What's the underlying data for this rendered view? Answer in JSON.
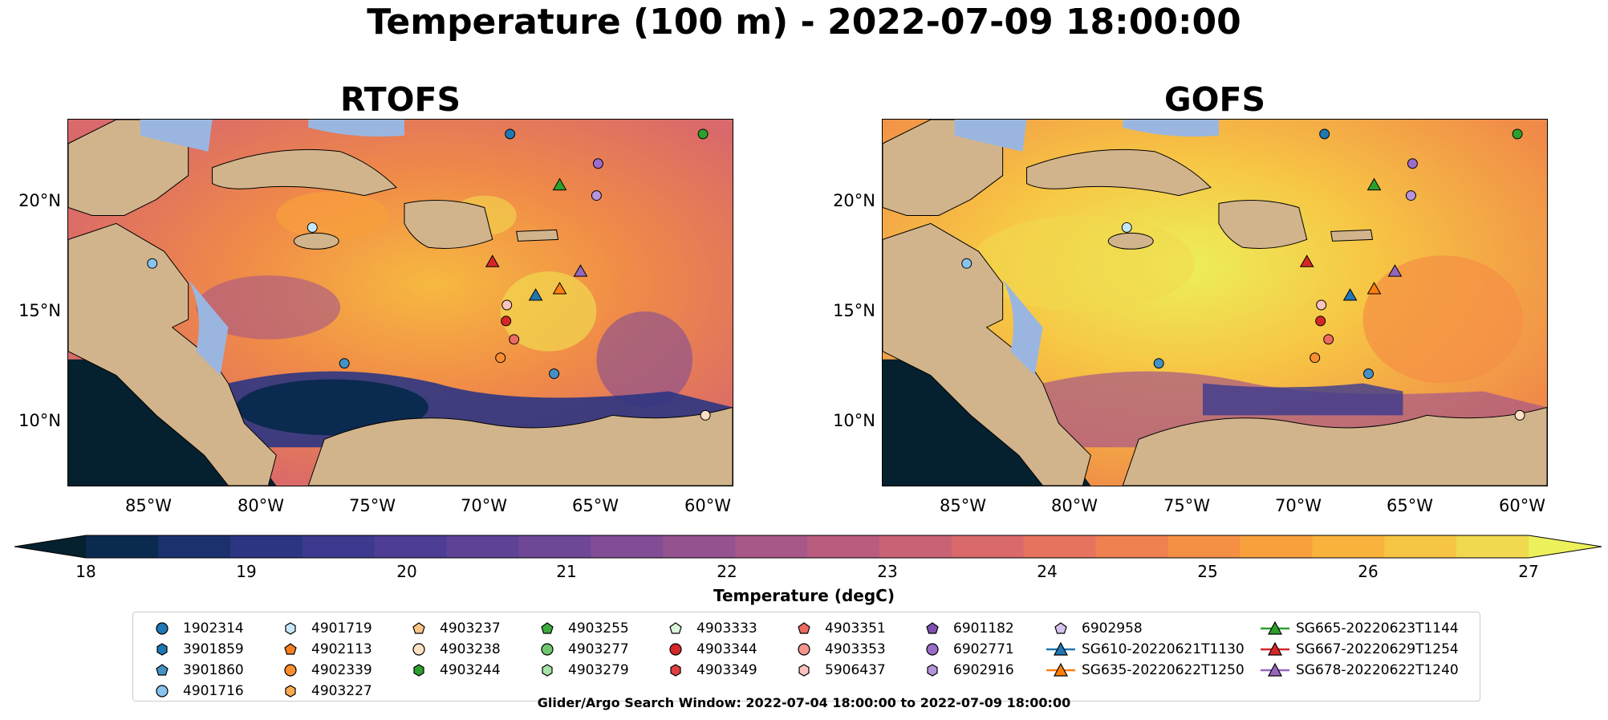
{
  "title": "Temperature (100 m) - 2022-07-09 18:00:00",
  "panels": [
    {
      "title": "RTOFS",
      "id": "rtofs"
    },
    {
      "title": "GOFS",
      "id": "gofs"
    }
  ],
  "y_ticks": [
    "20°N",
    "15°N",
    "10°N"
  ],
  "x_ticks": [
    "85°W",
    "80°W",
    "75°W",
    "70°W",
    "65°W",
    "60°W"
  ],
  "colorbar": {
    "label": "Temperature (degC)",
    "ticks": [
      "18",
      "19",
      "20",
      "21",
      "22",
      "23",
      "24",
      "25",
      "26",
      "27"
    ],
    "range": [
      18,
      27
    ],
    "colors": [
      "#05202e",
      "#0b2a4f",
      "#1a316e",
      "#2c3582",
      "#3b3a8e",
      "#4d3d94",
      "#5e4296",
      "#6f4797",
      "#824d95",
      "#94528f",
      "#a75788",
      "#b95c7f",
      "#ca6275",
      "#d9696a",
      "#e6735e",
      "#ef8050",
      "#f58f44",
      "#f8a03c",
      "#f9b23b",
      "#f7c544",
      "#f1d94f",
      "#ecf05a"
    ]
  },
  "legend": {
    "columns": [
      [
        {
          "label": "1902314",
          "marker": "circle",
          "color": "#1f77b4"
        },
        {
          "label": "3901859",
          "marker": "hexagon",
          "color": "#1f77b4"
        },
        {
          "label": "3901860",
          "marker": "pentagon",
          "color": "#4292c6"
        },
        {
          "label": "4901716",
          "marker": "circle",
          "color": "#87c4ee"
        }
      ],
      [
        {
          "label": "4901719",
          "marker": "hexagon",
          "color": "#c6e8fb"
        },
        {
          "label": "4902113",
          "marker": "pentagon",
          "color": "#f57e20"
        },
        {
          "label": "4902339",
          "marker": "circle",
          "color": "#fb8c2f"
        },
        {
          "label": "4903227",
          "marker": "hexagon",
          "color": "#fda84e"
        }
      ],
      [
        {
          "label": "4903237",
          "marker": "pentagon",
          "color": "#fdc488"
        },
        {
          "label": "4903238",
          "marker": "circle",
          "color": "#fde0c2"
        },
        {
          "label": "4903244",
          "marker": "hexagon",
          "color": "#2ca02c"
        }
      ],
      [
        {
          "label": "4903255",
          "marker": "pentagon",
          "color": "#3cab3c"
        },
        {
          "label": "4903277",
          "marker": "circle",
          "color": "#6ec76e"
        },
        {
          "label": "4903279",
          "marker": "hexagon",
          "color": "#a6e3a6"
        }
      ],
      [
        {
          "label": "4903333",
          "marker": "pentagon",
          "color": "#d9f7d9"
        },
        {
          "label": "4903344",
          "marker": "circle",
          "color": "#d62728"
        },
        {
          "label": "4903349",
          "marker": "hexagon",
          "color": "#e0403e"
        }
      ],
      [
        {
          "label": "4903351",
          "marker": "pentagon",
          "color": "#ec6a62"
        },
        {
          "label": "4903353",
          "marker": "circle",
          "color": "#f4948c"
        },
        {
          "label": "5906437",
          "marker": "hexagon",
          "color": "#fcc2bd"
        }
      ],
      [
        {
          "label": "6901182",
          "marker": "pentagon",
          "color": "#7f4fb0"
        },
        {
          "label": "6902771",
          "marker": "circle",
          "color": "#9b6cc8"
        },
        {
          "label": "6902916",
          "marker": "hexagon",
          "color": "#b694dc"
        }
      ],
      [
        {
          "label": "6902958",
          "marker": "pentagon",
          "color": "#d8c2ef"
        },
        {
          "label": "SG610-20220621T1130",
          "marker": "triangle-line",
          "color": "#1f77b4"
        },
        {
          "label": "SG635-20220622T1250",
          "marker": "triangle-line",
          "color": "#ff7f0e"
        }
      ],
      [
        {
          "label": "SG665-20220623T1144",
          "marker": "triangle-line",
          "color": "#2ca02c"
        },
        {
          "label": "SG667-20220629T1254",
          "marker": "triangle-line",
          "color": "#d62728"
        },
        {
          "label": "SG678-20220622T1240",
          "marker": "triangle-line",
          "color": "#9467bd"
        }
      ]
    ]
  },
  "footnote": "Glider/Argo Search Window: 2022-07-04 18:00:00 to 2022-07-09 18:00:00"
}
